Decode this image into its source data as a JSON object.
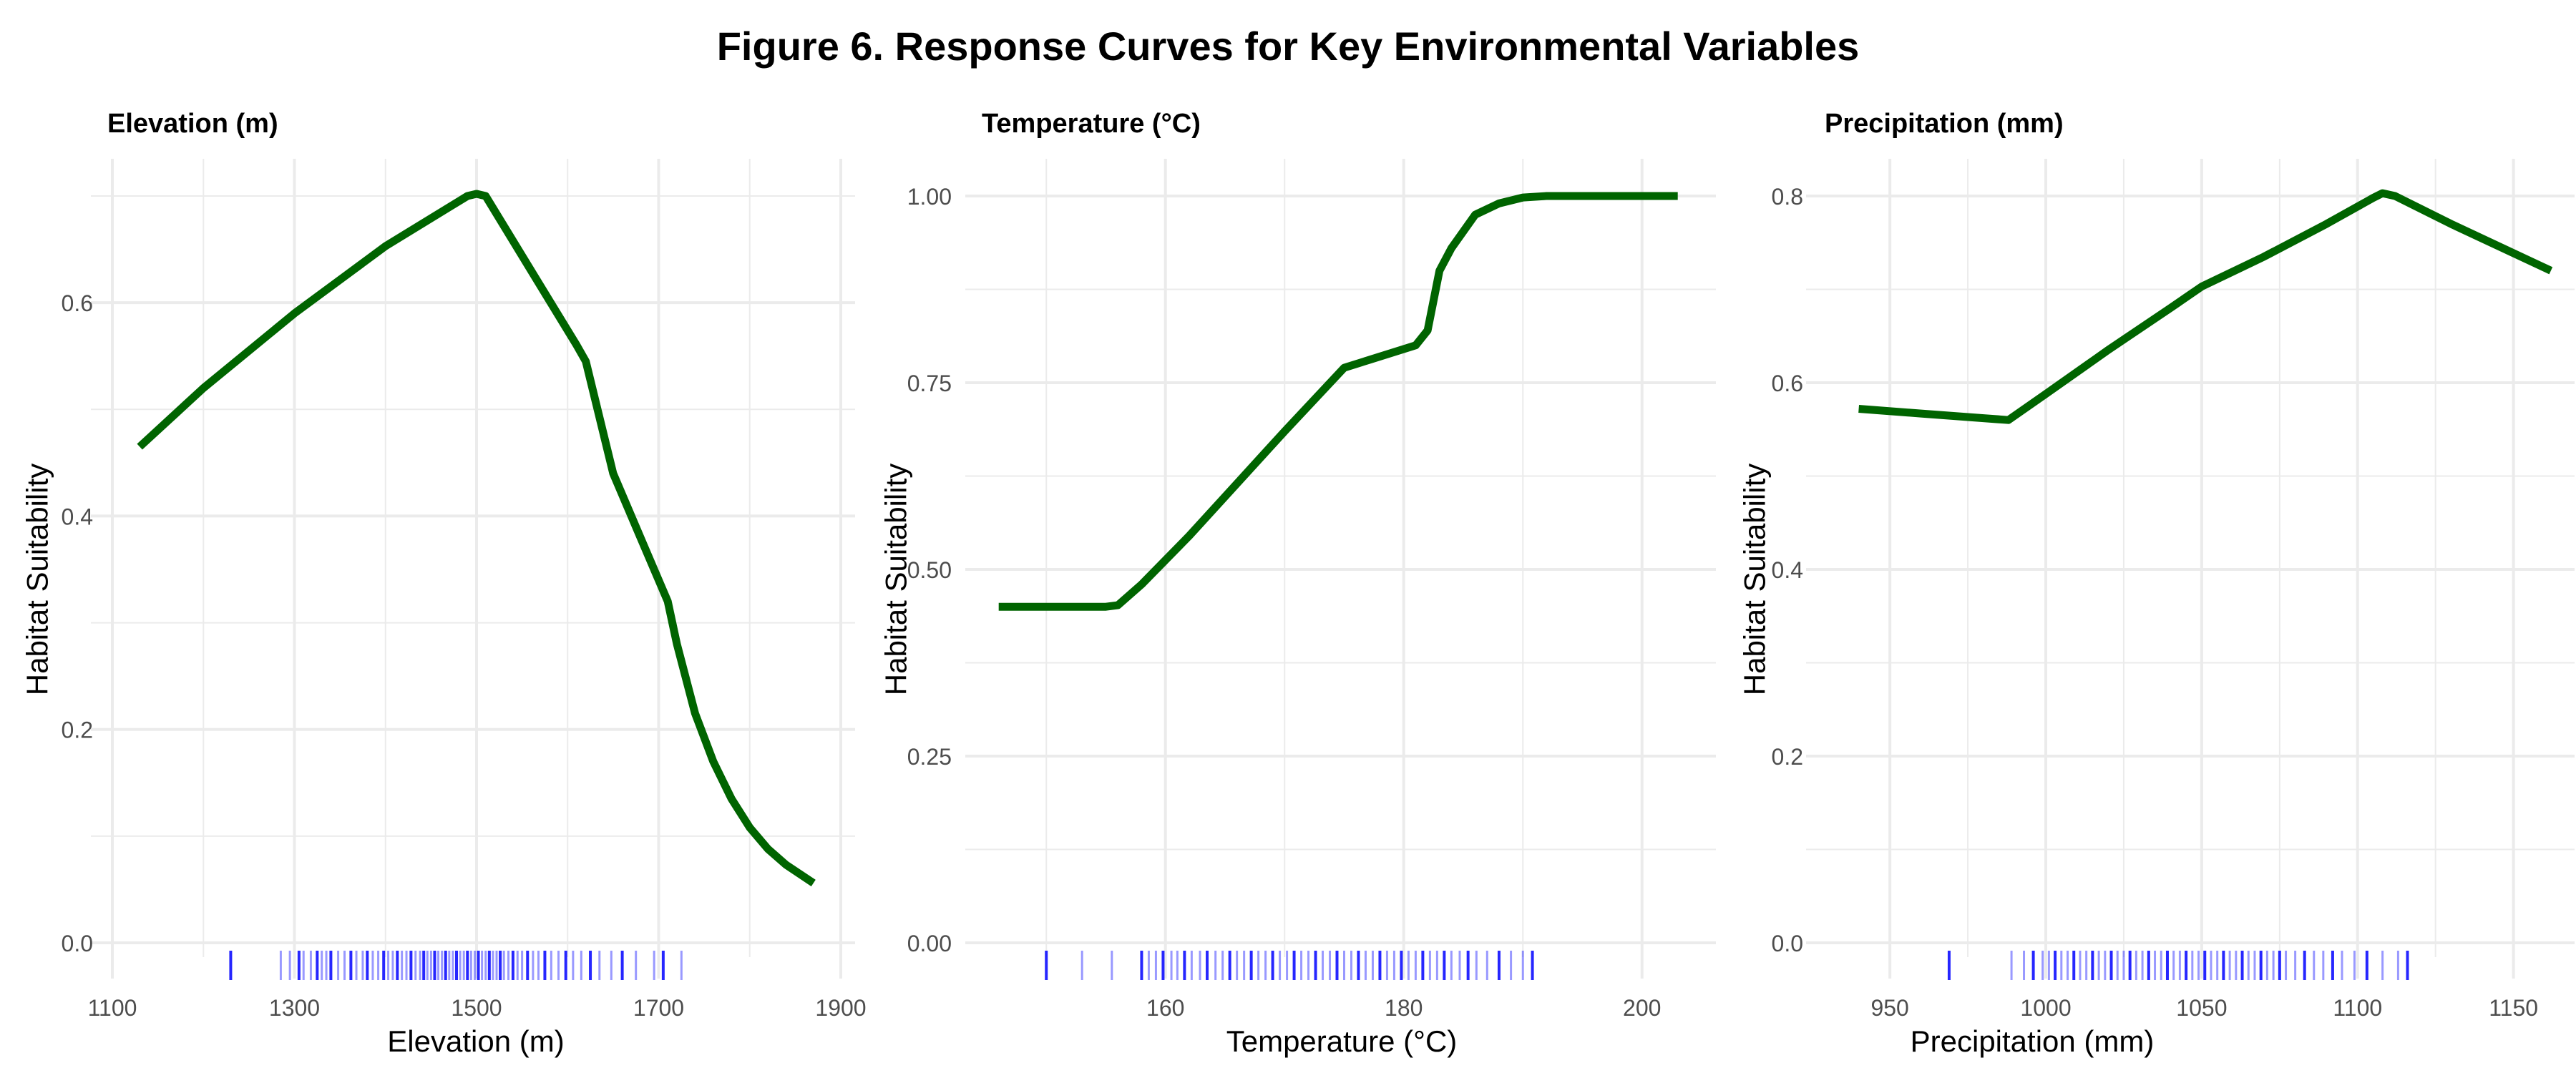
{
  "figure": {
    "title": "Figure 6. Response Curves for Key Environmental Variables"
  },
  "colors": {
    "curve": "#006400",
    "rug": "#0000FF",
    "grid": "#EBEBEB",
    "tick_text": "#4D4D4D",
    "title_text": "#000000"
  },
  "chart_data": [
    {
      "type": "line",
      "title": "Elevation (m)",
      "xlabel": "Elevation (m)",
      "ylabel": "Habitat Suitability",
      "xlim": [
        1100,
        1900
      ],
      "ylim": [
        0.0,
        0.7
      ],
      "xticks": [
        1100,
        1300,
        1500,
        1700,
        1900
      ],
      "xtick_labels": [
        "1100",
        "1300",
        "1500",
        "1700",
        "1900"
      ],
      "yticks": [
        0.0,
        0.2,
        0.4,
        0.6
      ],
      "ytick_labels": [
        "0.0",
        "0.2",
        "0.4",
        "0.6"
      ],
      "series": [
        {
          "x": [
            1130,
            1200,
            1300,
            1400,
            1490,
            1500,
            1510,
            1560,
            1610,
            1620,
            1650,
            1680,
            1710,
            1720,
            1740,
            1760,
            1780,
            1800,
            1820,
            1840,
            1870
          ],
          "y": [
            0.465,
            0.52,
            0.59,
            0.653,
            0.7,
            0.702,
            0.7,
            0.63,
            0.56,
            0.545,
            0.44,
            0.38,
            0.32,
            0.28,
            0.215,
            0.17,
            0.135,
            0.108,
            0.088,
            0.073,
            0.056
          ]
        }
      ],
      "rug": [
        1230,
        1285,
        1295,
        1305,
        1310,
        1318,
        1325,
        1330,
        1335,
        1340,
        1348,
        1355,
        1362,
        1368,
        1375,
        1380,
        1386,
        1392,
        1398,
        1403,
        1408,
        1413,
        1418,
        1423,
        1428,
        1433,
        1438,
        1442,
        1446,
        1450,
        1454,
        1458,
        1462,
        1466,
        1470,
        1474,
        1478,
        1482,
        1486,
        1490,
        1494,
        1498,
        1502,
        1506,
        1510,
        1514,
        1518,
        1522,
        1526,
        1530,
        1535,
        1540,
        1545,
        1550,
        1556,
        1562,
        1568,
        1575,
        1582,
        1590,
        1598,
        1606,
        1615,
        1625,
        1635,
        1648,
        1660,
        1675,
        1695,
        1705,
        1725
      ]
    },
    {
      "type": "line",
      "title": "Temperature (°C)",
      "xlabel": "Temperature (°C)",
      "ylabel": "Habitat Suitability",
      "xlim": [
        145,
        205
      ],
      "ylim": [
        0.0,
        1.0
      ],
      "xticks": [
        160,
        180,
        200
      ],
      "xtick_labels": [
        "160",
        "180",
        "200"
      ],
      "yticks": [
        0.0,
        0.25,
        0.5,
        0.75,
        1.0
      ],
      "ytick_labels": [
        "0.00",
        "0.25",
        "0.50",
        "0.75",
        "1.00"
      ],
      "series": [
        {
          "x": [
            146,
            150,
            155,
            156,
            158,
            162,
            166,
            170,
            175,
            181,
            182,
            183,
            184,
            186,
            188,
            190,
            192,
            195,
            200,
            203
          ],
          "y": [
            0.45,
            0.45,
            0.45,
            0.452,
            0.48,
            0.545,
            0.615,
            0.685,
            0.77,
            0.8,
            0.82,
            0.9,
            0.93,
            0.975,
            0.99,
            0.998,
            1.0,
            1.0,
            1.0,
            1.0
          ]
        }
      ],
      "rug": [
        150,
        153,
        155.5,
        158,
        158.6,
        159.2,
        159.8,
        160.5,
        161,
        161.6,
        162.2,
        162.9,
        163.5,
        164.2,
        164.8,
        165.4,
        166,
        166.6,
        167.2,
        167.8,
        168.4,
        169,
        169.6,
        170.2,
        170.8,
        171.4,
        172,
        172.6,
        173.2,
        173.8,
        174.4,
        175,
        175.6,
        176.2,
        176.8,
        177.4,
        178,
        178.6,
        179.2,
        179.8,
        180.4,
        181,
        181.6,
        182.2,
        182.8,
        183.4,
        184,
        184.7,
        185.4,
        186.1,
        187,
        188,
        189,
        190,
        190.8
      ]
    },
    {
      "type": "line",
      "title": "Precipitation (mm)",
      "xlabel": "Precipitation (mm)",
      "ylabel": "Habitat Suitability",
      "xlim": [
        930,
        1165
      ],
      "ylim": [
        0.0,
        0.8
      ],
      "xticks": [
        950,
        1000,
        1050,
        1100,
        1150
      ],
      "xtick_labels": [
        "950",
        "1000",
        "1050",
        "1100",
        "1150"
      ],
      "yticks": [
        0.0,
        0.2,
        0.4,
        0.6,
        0.8
      ],
      "ytick_labels": [
        "0.0",
        "0.2",
        "0.4",
        "0.6",
        "0.8"
      ],
      "series": [
        {
          "x": [
            940,
            960,
            980,
            988,
            1000,
            1020,
            1040,
            1050,
            1070,
            1090,
            1105,
            1108,
            1112,
            1130,
            1162
          ],
          "y": [
            0.572,
            0.567,
            0.562,
            0.56,
            0.588,
            0.635,
            0.68,
            0.703,
            0.735,
            0.77,
            0.798,
            0.803,
            0.8,
            0.77,
            0.72
          ]
        }
      ],
      "rug": [
        969,
        989,
        993,
        996,
        999,
        1001,
        1003,
        1005,
        1007,
        1009,
        1011,
        1013,
        1015,
        1017,
        1019,
        1021,
        1023,
        1025,
        1027,
        1029,
        1031,
        1033,
        1035,
        1037,
        1039,
        1041,
        1043,
        1045,
        1047,
        1049,
        1051,
        1053,
        1055,
        1057,
        1059,
        1061,
        1063,
        1065,
        1067,
        1069,
        1071,
        1073,
        1075,
        1077,
        1080,
        1083,
        1086,
        1089,
        1092,
        1095,
        1099,
        1103,
        1108,
        1113,
        1116
      ]
    }
  ]
}
